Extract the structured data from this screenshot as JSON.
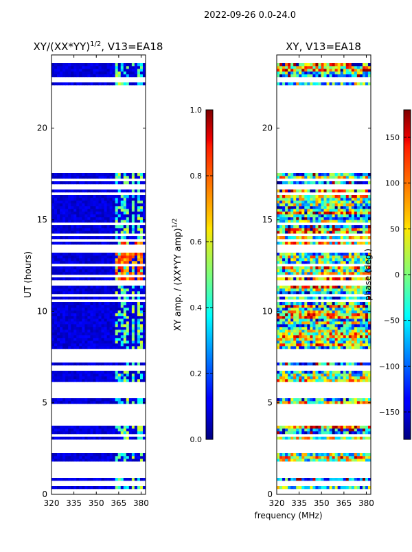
{
  "chart_data": {
    "type": "heatmap",
    "suptitle": "2022-09-26 0.0-24.0",
    "panels": [
      {
        "id": "amp",
        "title_main": "XY/(XX*YY)",
        "title_sup": "1/2",
        "title_tail": ", V13=EA18",
        "ylabel": "UT (hours)",
        "xlabel": "",
        "xlim": [
          320,
          383
        ],
        "ylim": [
          0,
          24
        ],
        "xticks": [
          320,
          335,
          350,
          365,
          380
        ],
        "xtick_labels": [
          "320",
          "335",
          "350",
          "365",
          "380"
        ],
        "yticks": [
          0,
          5,
          10,
          15,
          20
        ],
        "ytick_labels": [
          "0",
          "5",
          "10",
          "15",
          "20"
        ],
        "colorbar": {
          "label_main": "XY amp. / (XX*YY amp)",
          "label_sup": "1/2",
          "range": [
            0.0,
            1.0
          ],
          "ticks": [
            0.0,
            0.2,
            0.4,
            0.6,
            0.8,
            1.0
          ],
          "tick_labels": [
            "0.0",
            "0.2",
            "0.4",
            "0.6",
            "0.8",
            "1.0"
          ]
        }
      },
      {
        "id": "phase",
        "title_main": "XY, V13=EA18",
        "title_sup": "",
        "title_tail": "",
        "ylabel": "",
        "xlabel": "frequency (MHz)",
        "xlim": [
          320,
          383
        ],
        "ylim": [
          0,
          24
        ],
        "xticks": [
          320,
          335,
          350,
          365,
          380
        ],
        "xtick_labels": [
          "320",
          "335",
          "350",
          "365",
          "380"
        ],
        "yticks": [
          0,
          5,
          10,
          15,
          20
        ],
        "ytick_labels": [
          "0",
          "5",
          "10",
          "15",
          "20"
        ],
        "colorbar": {
          "label_main": "phase (deg.)",
          "label_sup": "",
          "range": [
            -180,
            180
          ],
          "ticks": [
            -150,
            -100,
            -50,
            0,
            50,
            100,
            150
          ],
          "tick_labels": [
            "−150",
            "−100",
            "−50",
            "0",
            "50",
            "100",
            "150"
          ]
        }
      }
    ],
    "data_bands_ut_hours": [
      [
        0.3,
        0.5
      ],
      [
        0.75,
        0.9
      ],
      [
        1.85,
        2.3
      ],
      [
        3.0,
        3.7
      ],
      [
        4.6,
        4.75
      ],
      [
        5.0,
        5.2
      ],
      [
        6.2,
        7.3
      ],
      [
        7.9,
        11.5
      ],
      [
        11.5,
        14.5
      ],
      [
        14.5,
        16.7
      ],
      [
        16.9,
        17.6
      ],
      [
        22.4,
        23.5
      ]
    ],
    "rfi_bright_channels_mhz": [
      364,
      366,
      370,
      375,
      379
    ],
    "strong_amp_region": {
      "ut_hours": [
        11.5,
        14.0
      ],
      "freq_mhz": [
        363,
        381
      ],
      "amplitude": 0.9
    },
    "typical_amp": 0.05
  }
}
